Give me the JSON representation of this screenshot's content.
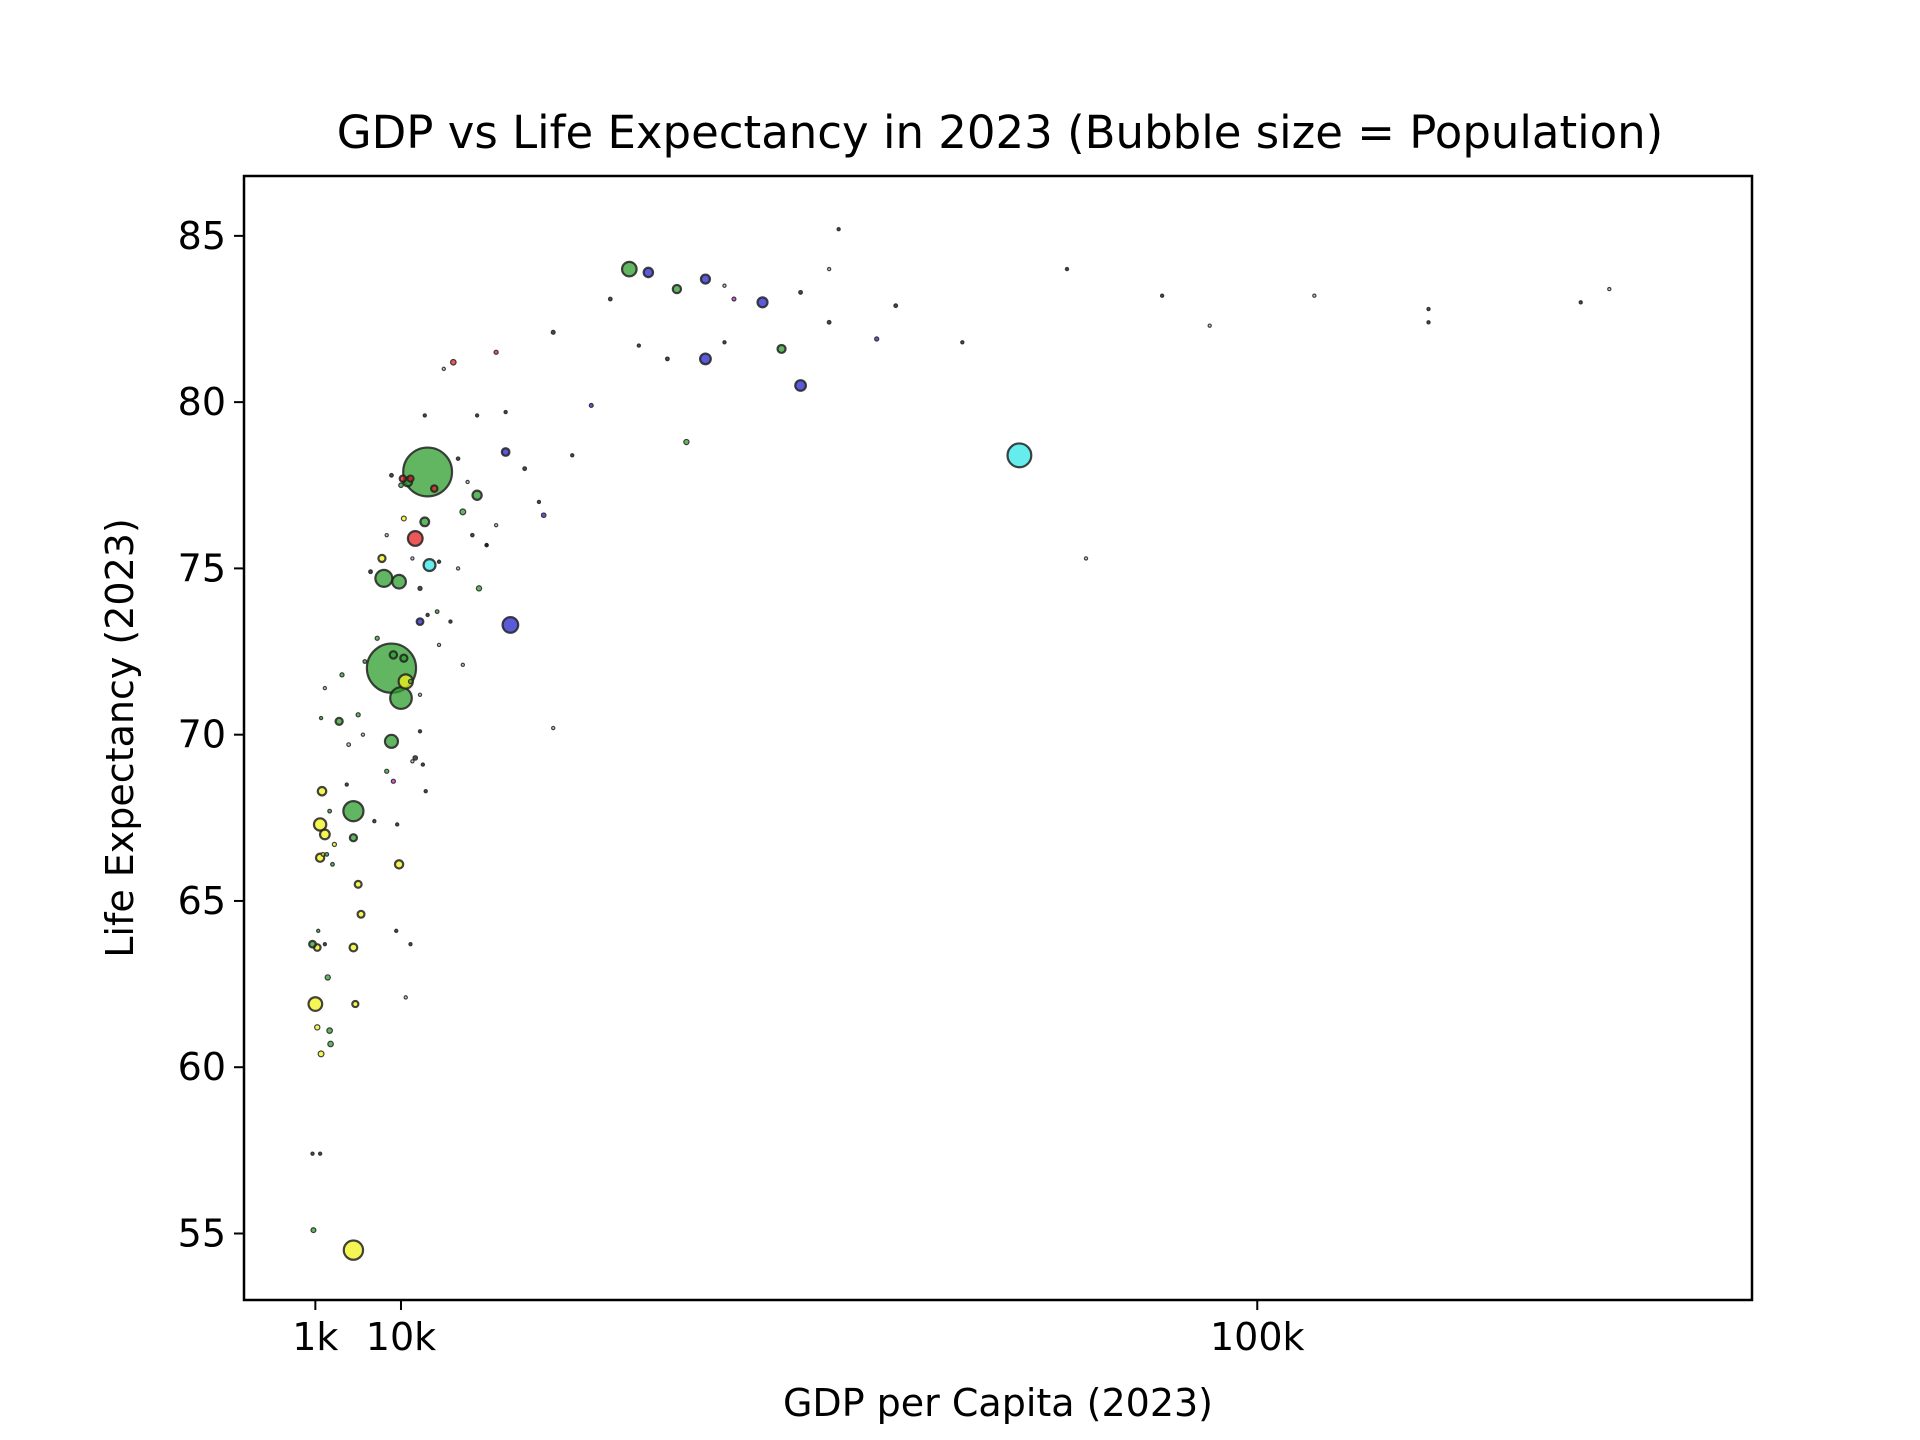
{
  "chart_data": {
    "type": "scatter",
    "title": "GDP vs Life Expectancy in 2023 (Bubble size = Population)",
    "xlabel": "GDP per Capita (2023)",
    "ylabel": "Life Expectancy (2023)",
    "x_scale": "linear",
    "xlim": [
      -6500,
      152000
    ],
    "ylim": [
      53,
      86.8
    ],
    "x_ticks": [
      {
        "value": 1000,
        "label": "1k"
      },
      {
        "value": 10000,
        "label": "10k"
      },
      {
        "value": 100000,
        "label": "100k"
      }
    ],
    "y_ticks": [
      {
        "value": 55,
        "label": "55"
      },
      {
        "value": 60,
        "label": "60"
      },
      {
        "value": 65,
        "label": "65"
      },
      {
        "value": 70,
        "label": "70"
      },
      {
        "value": 75,
        "label": "75"
      },
      {
        "value": 80,
        "label": "80"
      },
      {
        "value": 85,
        "label": "85"
      }
    ],
    "grid": false,
    "legend": "none",
    "size_meaning": "population",
    "region_colors": {
      "green": "#2e9e2e",
      "yellow": "#f2f21a",
      "blue": "#2424cc",
      "red": "#e62020",
      "cyan": "#33e6e6",
      "magenta": "#cc22cc",
      "black": "#111111",
      "gray": "#bbbbbb"
    },
    "points": [
      {
        "gdp": 12800,
        "life": 77.9,
        "pop": 1410,
        "color": "green"
      },
      {
        "gdp": 9000,
        "life": 72.0,
        "pop": 1430,
        "color": "green"
      },
      {
        "gdp": 75000,
        "life": 78.4,
        "pop": 335,
        "color": "cyan"
      },
      {
        "gdp": 5000,
        "life": 54.5,
        "pop": 220,
        "color": "yellow"
      },
      {
        "gdp": 21500,
        "life": 73.3,
        "pop": 145,
        "color": "blue"
      },
      {
        "gdp": 10000,
        "life": 71.1,
        "pop": 277,
        "color": "green"
      },
      {
        "gdp": 5000,
        "life": 67.7,
        "pop": 240,
        "color": "green"
      },
      {
        "gdp": 8200,
        "life": 74.7,
        "pop": 170,
        "color": "green"
      },
      {
        "gdp": 11500,
        "life": 75.9,
        "pop": 128,
        "color": "red"
      },
      {
        "gdp": 13000,
        "life": 75.1,
        "pop": 84,
        "color": "cyan"
      },
      {
        "gdp": 9800,
        "life": 74.6,
        "pop": 110,
        "color": "green"
      },
      {
        "gdp": 10500,
        "life": 71.6,
        "pop": 120,
        "color": "yellow"
      },
      {
        "gdp": 9000,
        "life": 69.8,
        "pop": 100,
        "color": "green"
      },
      {
        "gdp": 34000,
        "life": 84.0,
        "pop": 125,
        "color": "green"
      },
      {
        "gdp": 52000,
        "life": 80.5,
        "pop": 67,
        "color": "blue"
      },
      {
        "gdp": 42000,
        "life": 81.3,
        "pop": 68,
        "color": "blue"
      },
      {
        "gdp": 48000,
        "life": 83.0,
        "pop": 59,
        "color": "blue"
      },
      {
        "gdp": 36000,
        "life": 83.9,
        "pop": 52,
        "color": "blue"
      },
      {
        "gdp": 42000,
        "life": 83.7,
        "pop": 48,
        "color": "blue"
      },
      {
        "gdp": 18000,
        "life": 77.2,
        "pop": 50,
        "color": "green"
      },
      {
        "gdp": 12500,
        "life": 76.4,
        "pop": 45,
        "color": "green"
      },
      {
        "gdp": 9800,
        "life": 66.1,
        "pop": 40,
        "color": "yellow"
      },
      {
        "gdp": 1000,
        "life": 61.9,
        "pop": 110,
        "color": "yellow"
      },
      {
        "gdp": 1500,
        "life": 67.3,
        "pop": 90,
        "color": "yellow"
      },
      {
        "gdp": 39000,
        "life": 83.4,
        "pop": 40,
        "color": "green"
      },
      {
        "gdp": 50000,
        "life": 81.6,
        "pop": 38,
        "color": "green"
      },
      {
        "gdp": 10700,
        "life": 77.6,
        "pop": 45,
        "color": "green"
      },
      {
        "gdp": 21000,
        "life": 78.5,
        "pop": 34,
        "color": "blue"
      },
      {
        "gdp": 2000,
        "life": 67.0,
        "pop": 55,
        "color": "yellow"
      },
      {
        "gdp": 1700,
        "life": 68.3,
        "pop": 42,
        "color": "yellow"
      },
      {
        "gdp": 1500,
        "life": 66.3,
        "pop": 40,
        "color": "yellow"
      },
      {
        "gdp": 5000,
        "life": 63.6,
        "pop": 35,
        "color": "yellow"
      },
      {
        "gdp": 9200,
        "life": 72.4,
        "pop": 32,
        "color": "green"
      },
      {
        "gdp": 8000,
        "life": 75.3,
        "pop": 30,
        "color": "yellow"
      },
      {
        "gdp": 10300,
        "life": 72.3,
        "pop": 30,
        "color": "green"
      },
      {
        "gdp": 5000,
        "life": 66.9,
        "pop": 30,
        "color": "green"
      },
      {
        "gdp": 5800,
        "life": 64.6,
        "pop": 28,
        "color": "yellow"
      },
      {
        "gdp": 5500,
        "life": 65.5,
        "pop": 28,
        "color": "yellow"
      },
      {
        "gdp": 3500,
        "life": 70.4,
        "pop": 30,
        "color": "green"
      },
      {
        "gdp": 12000,
        "life": 73.4,
        "pop": 26,
        "color": "blue"
      },
      {
        "gdp": 13500,
        "life": 77.4,
        "pop": 24,
        "color": "red"
      },
      {
        "gdp": 10200,
        "life": 77.7,
        "pop": 24,
        "color": "red"
      },
      {
        "gdp": 11000,
        "life": 77.7,
        "pop": 22,
        "color": "red"
      },
      {
        "gdp": 15500,
        "life": 81.2,
        "pop": 18,
        "color": "red"
      },
      {
        "gdp": 45000,
        "life": 83.1,
        "pop": 9,
        "color": "magenta"
      },
      {
        "gdp": 60000,
        "life": 81.9,
        "pop": 10,
        "color": "blue"
      },
      {
        "gdp": 30000,
        "life": 79.9,
        "pop": 9,
        "color": "blue"
      },
      {
        "gdp": 40000,
        "life": 78.8,
        "pop": 16,
        "color": "green"
      },
      {
        "gdp": 5200,
        "life": 61.9,
        "pop": 22,
        "color": "yellow"
      },
      {
        "gdp": 1200,
        "life": 63.6,
        "pop": 26,
        "color": "yellow"
      },
      {
        "gdp": 700,
        "life": 63.7,
        "pop": 26,
        "color": "green"
      },
      {
        "gdp": 2500,
        "life": 61.1,
        "pop": 18,
        "color": "green"
      },
      {
        "gdp": 1600,
        "life": 60.4,
        "pop": 20,
        "color": "yellow"
      },
      {
        "gdp": 800,
        "life": 55.1,
        "pop": 14,
        "color": "green"
      },
      {
        "gdp": 2300,
        "life": 62.7,
        "pop": 16,
        "color": "green"
      },
      {
        "gdp": 1200,
        "life": 61.2,
        "pop": 16,
        "color": "yellow"
      },
      {
        "gdp": 2600,
        "life": 60.7,
        "pop": 18,
        "color": "green"
      },
      {
        "gdp": 16500,
        "life": 76.7,
        "pop": 20,
        "color": "green"
      },
      {
        "gdp": 18200,
        "life": 74.4,
        "pop": 16,
        "color": "green"
      },
      {
        "gdp": 10300,
        "life": 76.5,
        "pop": 14,
        "color": "yellow"
      },
      {
        "gdp": 11500,
        "life": 69.3,
        "pop": 12,
        "color": "black"
      },
      {
        "gdp": 10000,
        "life": 77.5,
        "pop": 12,
        "color": "green"
      },
      {
        "gdp": 25000,
        "life": 76.6,
        "pop": 12,
        "color": "blue"
      },
      {
        "gdp": 20000,
        "life": 81.5,
        "pop": 10,
        "color": "red"
      },
      {
        "gdp": 4500,
        "life": 69.7,
        "pop": 8,
        "color": "gray"
      },
      {
        "gdp": 7500,
        "life": 72.9,
        "pop": 10,
        "color": "green"
      },
      {
        "gdp": 9000,
        "life": 77.8,
        "pop": 8,
        "color": "black"
      },
      {
        "gdp": 8500,
        "life": 68.9,
        "pop": 10,
        "color": "green"
      },
      {
        "gdp": 9200,
        "life": 68.6,
        "pop": 10,
        "color": "magenta"
      },
      {
        "gdp": 11000,
        "life": 71.6,
        "pop": 10,
        "color": "green"
      },
      {
        "gdp": 12000,
        "life": 74.4,
        "pop": 10,
        "color": "black"
      },
      {
        "gdp": 13800,
        "life": 73.7,
        "pop": 8,
        "color": "green"
      },
      {
        "gdp": 14000,
        "life": 75.2,
        "pop": 6,
        "color": "black"
      },
      {
        "gdp": 16000,
        "life": 78.3,
        "pop": 7,
        "color": "black"
      },
      {
        "gdp": 17500,
        "life": 76.0,
        "pop": 7,
        "color": "black"
      },
      {
        "gdp": 19000,
        "life": 75.7,
        "pop": 6,
        "color": "black"
      },
      {
        "gdp": 23000,
        "life": 78.0,
        "pop": 8,
        "color": "black"
      },
      {
        "gdp": 26000,
        "life": 82.1,
        "pop": 9,
        "color": "black"
      },
      {
        "gdp": 28000,
        "life": 78.4,
        "pop": 6,
        "color": "black"
      },
      {
        "gdp": 32000,
        "life": 83.1,
        "pop": 8,
        "color": "black"
      },
      {
        "gdp": 35000,
        "life": 81.7,
        "pop": 6,
        "color": "black"
      },
      {
        "gdp": 38000,
        "life": 81.3,
        "pop": 8,
        "color": "black"
      },
      {
        "gdp": 44000,
        "life": 81.8,
        "pop": 6,
        "color": "black"
      },
      {
        "gdp": 52000,
        "life": 83.3,
        "pop": 8,
        "color": "black"
      },
      {
        "gdp": 55000,
        "life": 82.4,
        "pop": 8,
        "color": "black"
      },
      {
        "gdp": 56000,
        "life": 85.2,
        "pop": 6,
        "color": "black"
      },
      {
        "gdp": 62000,
        "life": 82.9,
        "pop": 8,
        "color": "black"
      },
      {
        "gdp": 69000,
        "life": 81.8,
        "pop": 6,
        "color": "black"
      },
      {
        "gdp": 80000,
        "life": 84.0,
        "pop": 6,
        "color": "black"
      },
      {
        "gdp": 90000,
        "life": 83.2,
        "pop": 6,
        "color": "black"
      },
      {
        "gdp": 118000,
        "life": 82.8,
        "pop": 5,
        "color": "black"
      },
      {
        "gdp": 118000,
        "life": 82.4,
        "pop": 5,
        "color": "black"
      },
      {
        "gdp": 134000,
        "life": 83.0,
        "pop": 5,
        "color": "black"
      },
      {
        "gdp": 137000,
        "life": 83.4,
        "pop": 3,
        "color": "gray"
      },
      {
        "gdp": 82000,
        "life": 75.3,
        "pop": 3,
        "color": "gray"
      },
      {
        "gdp": 26000,
        "life": 70.2,
        "pop": 3,
        "color": "gray"
      },
      {
        "gdp": 44000,
        "life": 83.5,
        "pop": 3,
        "color": "gray"
      },
      {
        "gdp": 55000,
        "life": 84.0,
        "pop": 3,
        "color": "gray"
      },
      {
        "gdp": 106000,
        "life": 83.2,
        "pop": 3,
        "color": "gray"
      },
      {
        "gdp": 95000,
        "life": 82.3,
        "pop": 2,
        "color": "gray"
      },
      {
        "gdp": 2000,
        "life": 71.4,
        "pop": 4,
        "color": "gray"
      },
      {
        "gdp": 1600,
        "life": 70.5,
        "pop": 5,
        "color": "green"
      },
      {
        "gdp": 1300,
        "life": 64.1,
        "pop": 6,
        "color": "green"
      },
      {
        "gdp": 2800,
        "life": 66.1,
        "pop": 8,
        "color": "green"
      },
      {
        "gdp": 3000,
        "life": 66.7,
        "pop": 10,
        "color": "yellow"
      },
      {
        "gdp": 2500,
        "life": 67.7,
        "pop": 8,
        "color": "green"
      },
      {
        "gdp": 4300,
        "life": 68.5,
        "pop": 6,
        "color": "black"
      },
      {
        "gdp": 3800,
        "life": 71.8,
        "pop": 10,
        "color": "green"
      },
      {
        "gdp": 5500,
        "life": 70.6,
        "pop": 10,
        "color": "green"
      },
      {
        "gdp": 6800,
        "life": 74.9,
        "pop": 8,
        "color": "black"
      },
      {
        "gdp": 6200,
        "life": 72.2,
        "pop": 8,
        "color": "green"
      },
      {
        "gdp": 7200,
        "life": 67.4,
        "pop": 6,
        "color": "black"
      },
      {
        "gdp": 9600,
        "life": 67.3,
        "pop": 4,
        "color": "black"
      },
      {
        "gdp": 9500,
        "life": 64.1,
        "pop": 4,
        "color": "black"
      },
      {
        "gdp": 12000,
        "life": 70.1,
        "pop": 6,
        "color": "black"
      },
      {
        "gdp": 12600,
        "life": 68.3,
        "pop": 4,
        "color": "black"
      },
      {
        "gdp": 12300,
        "life": 69.1,
        "pop": 4,
        "color": "black"
      },
      {
        "gdp": 11000,
        "life": 63.7,
        "pop": 4,
        "color": "black"
      },
      {
        "gdp": 12800,
        "life": 73.6,
        "pop": 4,
        "color": "black"
      },
      {
        "gdp": 15200,
        "life": 73.4,
        "pop": 4,
        "color": "black"
      },
      {
        "gdp": 19000,
        "life": 75.7,
        "pop": 4,
        "color": "black"
      },
      {
        "gdp": 24500,
        "life": 77.0,
        "pop": 4,
        "color": "black"
      },
      {
        "gdp": 14500,
        "life": 81.0,
        "pop": 4,
        "color": "gray"
      },
      {
        "gdp": 17000,
        "life": 77.6,
        "pop": 3,
        "color": "gray"
      },
      {
        "gdp": 20000,
        "life": 76.3,
        "pop": 3,
        "color": "gray"
      },
      {
        "gdp": 16500,
        "life": 72.1,
        "pop": 3,
        "color": "gray"
      },
      {
        "gdp": 10500,
        "life": 62.1,
        "pop": 2,
        "color": "gray"
      },
      {
        "gdp": 11200,
        "life": 69.2,
        "pop": 2,
        "color": "gray"
      },
      {
        "gdp": 12000,
        "life": 71.2,
        "pop": 3,
        "color": "gray"
      },
      {
        "gdp": 14000,
        "life": 72.7,
        "pop": 3,
        "color": "gray"
      },
      {
        "gdp": 6000,
        "life": 70.0,
        "pop": 3,
        "color": "gray"
      },
      {
        "gdp": 16000,
        "life": 75.0,
        "pop": 3,
        "color": "gray"
      },
      {
        "gdp": 8500,
        "life": 76.0,
        "pop": 3,
        "color": "gray"
      },
      {
        "gdp": 21000,
        "life": 79.7,
        "pop": 5,
        "color": "black"
      },
      {
        "gdp": 18000,
        "life": 79.6,
        "pop": 5,
        "color": "black"
      },
      {
        "gdp": 12500,
        "life": 79.6,
        "pop": 4,
        "color": "black"
      },
      {
        "gdp": 11200,
        "life": 75.3,
        "pop": 5,
        "color": "gray"
      },
      {
        "gdp": 1500,
        "life": 57.4,
        "pop": 3,
        "color": "black"
      },
      {
        "gdp": 700,
        "life": 57.4,
        "pop": 3,
        "color": "black"
      },
      {
        "gdp": 2000,
        "life": 63.7,
        "pop": 6,
        "color": "black"
      },
      {
        "gdp": 1800,
        "life": 66.4,
        "pop": 8,
        "color": "yellow"
      },
      {
        "gdp": 2200,
        "life": 66.4,
        "pop": 8,
        "color": "green"
      }
    ]
  }
}
